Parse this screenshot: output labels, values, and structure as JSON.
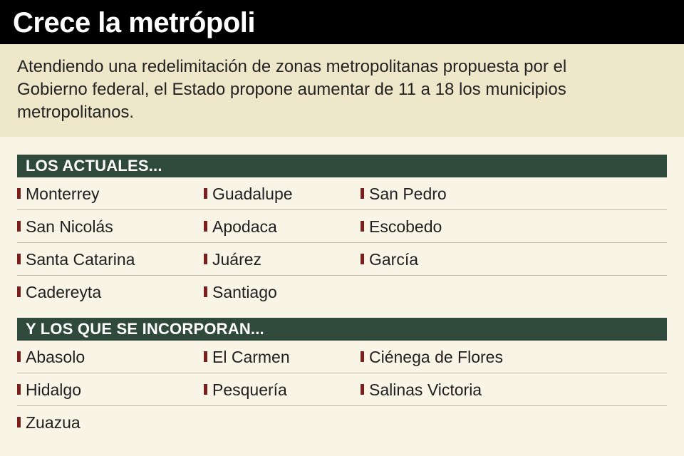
{
  "title": "Crece la metrópoli",
  "intro": "Atendiendo una redelimitación de zonas metropolitanas propuesta por el Gobierno federal, el Estado propone aumentar de 11 a 18 los municipios metropolitanos.",
  "colors": {
    "title_bar": "#000000",
    "intro_band": "#efe7c9",
    "background": "#f8f4e6",
    "section_header": "#2f4a3a",
    "bullet": "#7a1e1e"
  },
  "sections": [
    {
      "heading": "LOS ACTUALES...",
      "rows": [
        [
          "Monterrey",
          "Guadalupe",
          "San Pedro"
        ],
        [
          "San Nicolás",
          "Apodaca",
          "Escobedo"
        ],
        [
          "Santa Catarina",
          "Juárez",
          "García"
        ],
        [
          "Cadereyta",
          "Santiago"
        ]
      ]
    },
    {
      "heading": "Y LOS QUE SE INCORPORAN...",
      "rows": [
        [
          "Abasolo",
          "El Carmen",
          "Ciénega de Flores"
        ],
        [
          "Hidalgo",
          "Pesquería",
          "Salinas Victoria"
        ],
        [
          "Zuazua"
        ]
      ]
    }
  ]
}
